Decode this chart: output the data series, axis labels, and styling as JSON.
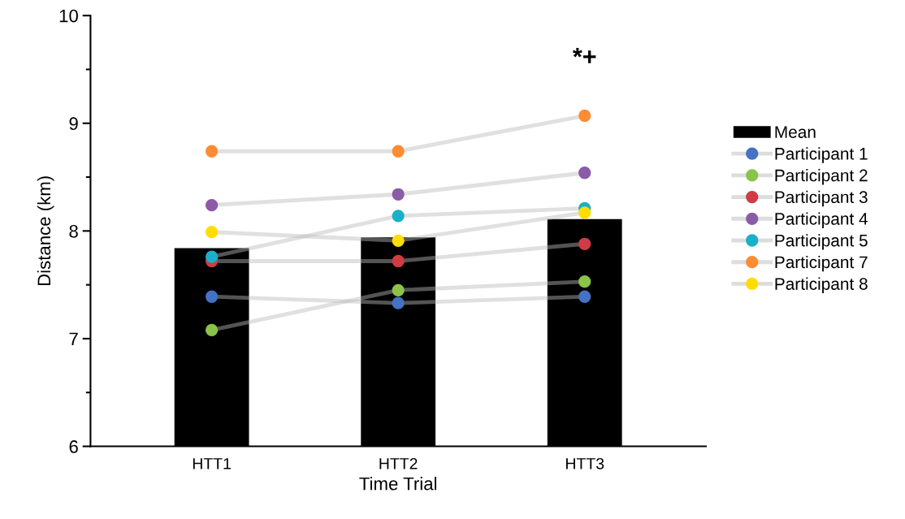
{
  "chart_data": {
    "type": "bar",
    "xlabel": "Time Trial",
    "ylabel": "Distance (km)",
    "categories": [
      "HTT1",
      "HTT2",
      "HTT3"
    ],
    "series": [
      {
        "name": "Mean",
        "color": "#000000",
        "values": [
          7.84,
          7.94,
          8.11
        ]
      },
      {
        "name": "Participant 1",
        "type": "line",
        "color": "#4472c4",
        "values": [
          7.39,
          7.33,
          7.39
        ]
      },
      {
        "name": "Participant 2",
        "type": "line",
        "color": "#8bc34a",
        "values": [
          7.08,
          7.45,
          7.53
        ]
      },
      {
        "name": "Participant 3",
        "type": "line",
        "color": "#d13b45",
        "values": [
          7.72,
          7.72,
          7.88
        ]
      },
      {
        "name": "Participant 4",
        "type": "line",
        "color": "#8a5ca8",
        "values": [
          8.24,
          8.34,
          8.54
        ]
      },
      {
        "name": "Participant 5",
        "type": "line",
        "color": "#1ab0c8",
        "values": [
          7.76,
          8.14,
          8.21
        ]
      },
      {
        "name": "Participant 7",
        "type": "line",
        "color": "#ff8c33",
        "values": [
          8.74,
          8.74,
          9.07
        ]
      },
      {
        "name": "Participant 8",
        "type": "line",
        "color": "#ffdd00",
        "values": [
          7.99,
          7.91,
          8.17
        ]
      }
    ],
    "ylim": [
      6,
      10
    ],
    "yticks": [
      6,
      {
        "value": 6.5,
        "label": null
      },
      7,
      {
        "value": 7.5,
        "label": null
      },
      8,
      {
        "value": 8.5,
        "label": null
      },
      9,
      {
        "value": 9.5,
        "label": null
      },
      10
    ],
    "annotations": [
      "*+"
    ],
    "legend": "right",
    "marker": "circle",
    "grid": false
  }
}
